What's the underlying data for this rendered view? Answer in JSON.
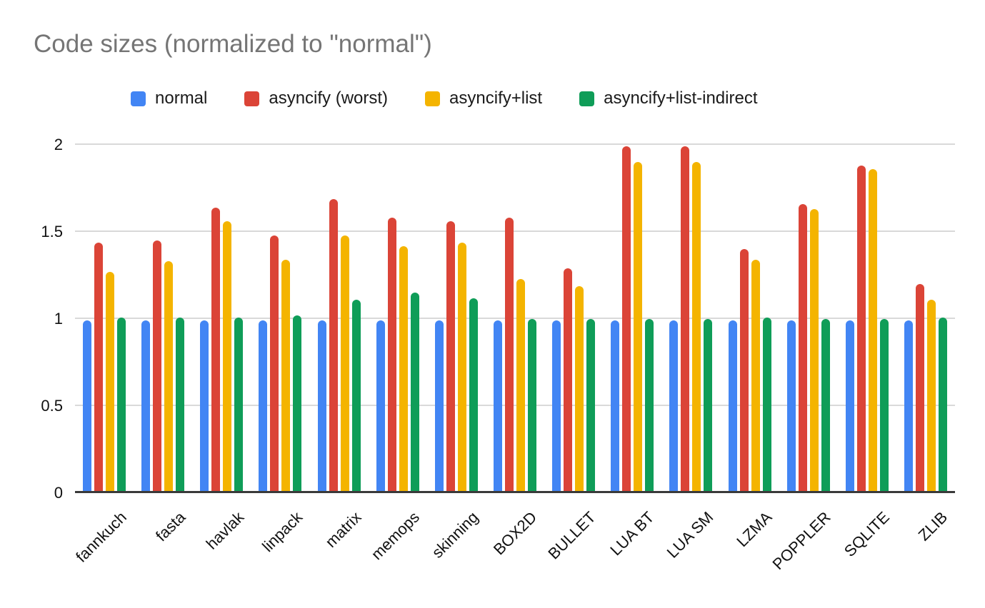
{
  "chart_data": {
    "type": "bar",
    "title": "Code sizes (normalized to \"normal\")",
    "title_color": "#757575",
    "xlabel": "",
    "ylabel": "",
    "categories": [
      "fannkuch",
      "fasta",
      "havlak",
      "linpack",
      "matrix",
      "memops",
      "skinning",
      "BOX2D",
      "BULLET",
      "LUA BT",
      "LUA SM",
      "LZMA",
      "POPPLER",
      "SQLITE",
      "ZLIB"
    ],
    "series": [
      {
        "name": "normal",
        "color": "#4285F4",
        "values": [
          0.99,
          0.99,
          0.99,
          0.99,
          0.99,
          0.99,
          0.99,
          0.99,
          0.99,
          0.99,
          0.99,
          0.99,
          0.99,
          0.99,
          0.99
        ]
      },
      {
        "name": "asyncify (worst)",
        "color": "#DB4437",
        "values": [
          1.44,
          1.45,
          1.64,
          1.48,
          1.69,
          1.58,
          1.56,
          1.58,
          1.29,
          1.99,
          1.99,
          1.4,
          1.66,
          1.88,
          1.2
        ]
      },
      {
        "name": "asyncify+list",
        "color": "#F4B400",
        "values": [
          1.27,
          1.33,
          1.56,
          1.34,
          1.48,
          1.42,
          1.44,
          1.23,
          1.19,
          1.9,
          1.9,
          1.34,
          1.63,
          1.86,
          1.11
        ]
      },
      {
        "name": "asyncify+list-indirect",
        "color": "#0F9D58",
        "values": [
          1.01,
          1.01,
          1.01,
          1.02,
          1.11,
          1.15,
          1.12,
          1.0,
          1.0,
          1.0,
          1.0,
          1.01,
          1.0,
          1.0,
          1.01
        ]
      }
    ],
    "ylim": [
      0,
      2
    ],
    "yticks": [
      {
        "value": 0,
        "label": "0"
      },
      {
        "value": 0.5,
        "label": "0.5"
      },
      {
        "value": 1,
        "label": "1"
      },
      {
        "value": 1.5,
        "label": "1.5"
      },
      {
        "value": 2,
        "label": "2"
      }
    ],
    "grid": true,
    "gridline_color": "#d9d9d9",
    "baseline_color": "#3a3a3a",
    "legend_position": "top",
    "xlabel_rotation_deg": -45
  }
}
